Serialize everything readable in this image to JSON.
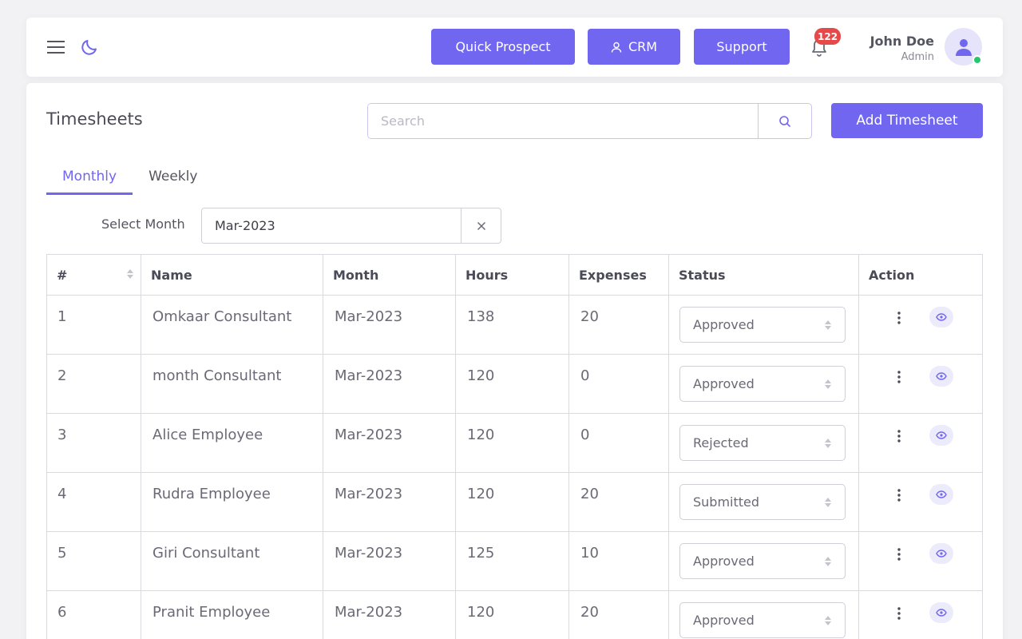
{
  "header": {
    "quick_prospect_label": "Quick Prospect",
    "crm_label": "CRM",
    "support_label": "Support",
    "notification_count": "122",
    "user_name": "John Doe",
    "user_role": "Admin"
  },
  "page": {
    "title": "Timesheets",
    "search_placeholder": "Search",
    "add_button_label": "Add Timesheet",
    "tabs": [
      {
        "label": "Monthly",
        "active": true
      },
      {
        "label": "Weekly",
        "active": false
      }
    ],
    "select_month_label": "Select Month",
    "select_month_value": "Mar-2023"
  },
  "table": {
    "columns": [
      "#",
      "Name",
      "Month",
      "Hours",
      "Expenses",
      "Status",
      "Action"
    ],
    "rows": [
      {
        "idx": "1",
        "name": "Omkaar Consultant",
        "month": "Mar-2023",
        "hours": "138",
        "expenses": "20",
        "status": "Approved"
      },
      {
        "idx": "2",
        "name": "month Consultant",
        "month": "Mar-2023",
        "hours": "120",
        "expenses": "0",
        "status": "Approved"
      },
      {
        "idx": "3",
        "name": "Alice Employee",
        "month": "Mar-2023",
        "hours": "120",
        "expenses": "0",
        "status": "Rejected"
      },
      {
        "idx": "4",
        "name": "Rudra Employee",
        "month": "Mar-2023",
        "hours": "120",
        "expenses": "20",
        "status": "Submitted"
      },
      {
        "idx": "5",
        "name": "Giri Consultant",
        "month": "Mar-2023",
        "hours": "125",
        "expenses": "10",
        "status": "Approved"
      },
      {
        "idx": "6",
        "name": "Pranit Employee",
        "month": "Mar-2023",
        "hours": "120",
        "expenses": "20",
        "status": "Approved"
      }
    ]
  },
  "colors": {
    "accent": "#7166f0",
    "badge": "#e44a4a",
    "online": "#28c76f"
  },
  "icons": [
    "menu-icon",
    "moon-icon",
    "user-icon",
    "bell-icon",
    "avatar-icon",
    "search-icon",
    "close-icon",
    "sort-icon",
    "kebab-icon",
    "eye-icon",
    "select-arrows-icon"
  ]
}
